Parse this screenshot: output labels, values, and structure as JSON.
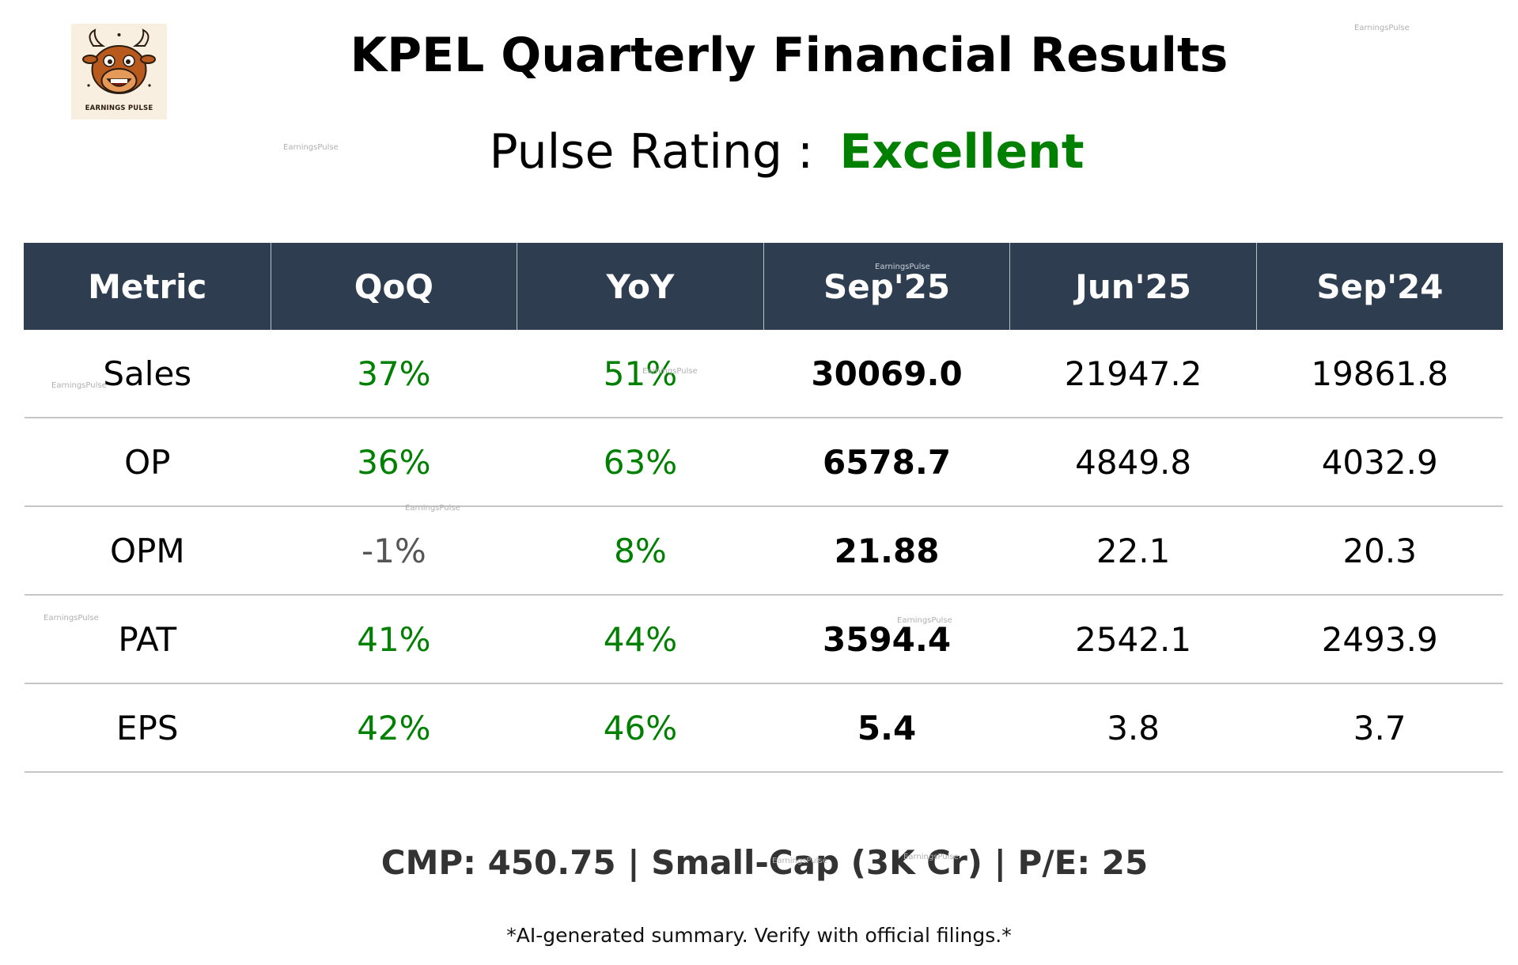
{
  "logo": {
    "text": "EARNINGS PULSE",
    "icon": "bull-mascot-icon"
  },
  "title": "KPEL Quarterly Financial Results",
  "rating": {
    "label": "Pulse Rating :",
    "value": "Excellent",
    "value_color": "#008000"
  },
  "table": {
    "headers": [
      "Metric",
      "QoQ",
      "YoY",
      "Sep'25",
      "Jun'25",
      "Sep'24"
    ],
    "rows": [
      {
        "metric": "Sales",
        "qoq": "37%",
        "yoy": "51%",
        "sep25": "30069.0",
        "jun25": "21947.2",
        "sep24": "19861.8"
      },
      {
        "metric": "OP",
        "qoq": "36%",
        "yoy": "63%",
        "sep25": "6578.7",
        "jun25": "4849.8",
        "sep24": "4032.9"
      },
      {
        "metric": "OPM",
        "qoq": "-1%",
        "yoy": "8%",
        "sep25": "21.88",
        "jun25": "22.1",
        "sep24": "20.3"
      },
      {
        "metric": "PAT",
        "qoq": "41%",
        "yoy": "44%",
        "sep25": "3594.4",
        "jun25": "2542.1",
        "sep24": "2493.9"
      },
      {
        "metric": "EPS",
        "qoq": "42%",
        "yoy": "46%",
        "sep25": "5.4",
        "jun25": "3.8",
        "sep24": "3.7"
      }
    ],
    "colors": {
      "header_bg": "#2e3e50",
      "positive": "#008000",
      "negative": "#555555"
    }
  },
  "cmp_line": "CMP: 450.75 | Small-Cap (3K Cr) | P/E: 25",
  "disclaimer": "*AI-generated summary. Verify with official filings.*",
  "watermark": "EarningsPulse"
}
